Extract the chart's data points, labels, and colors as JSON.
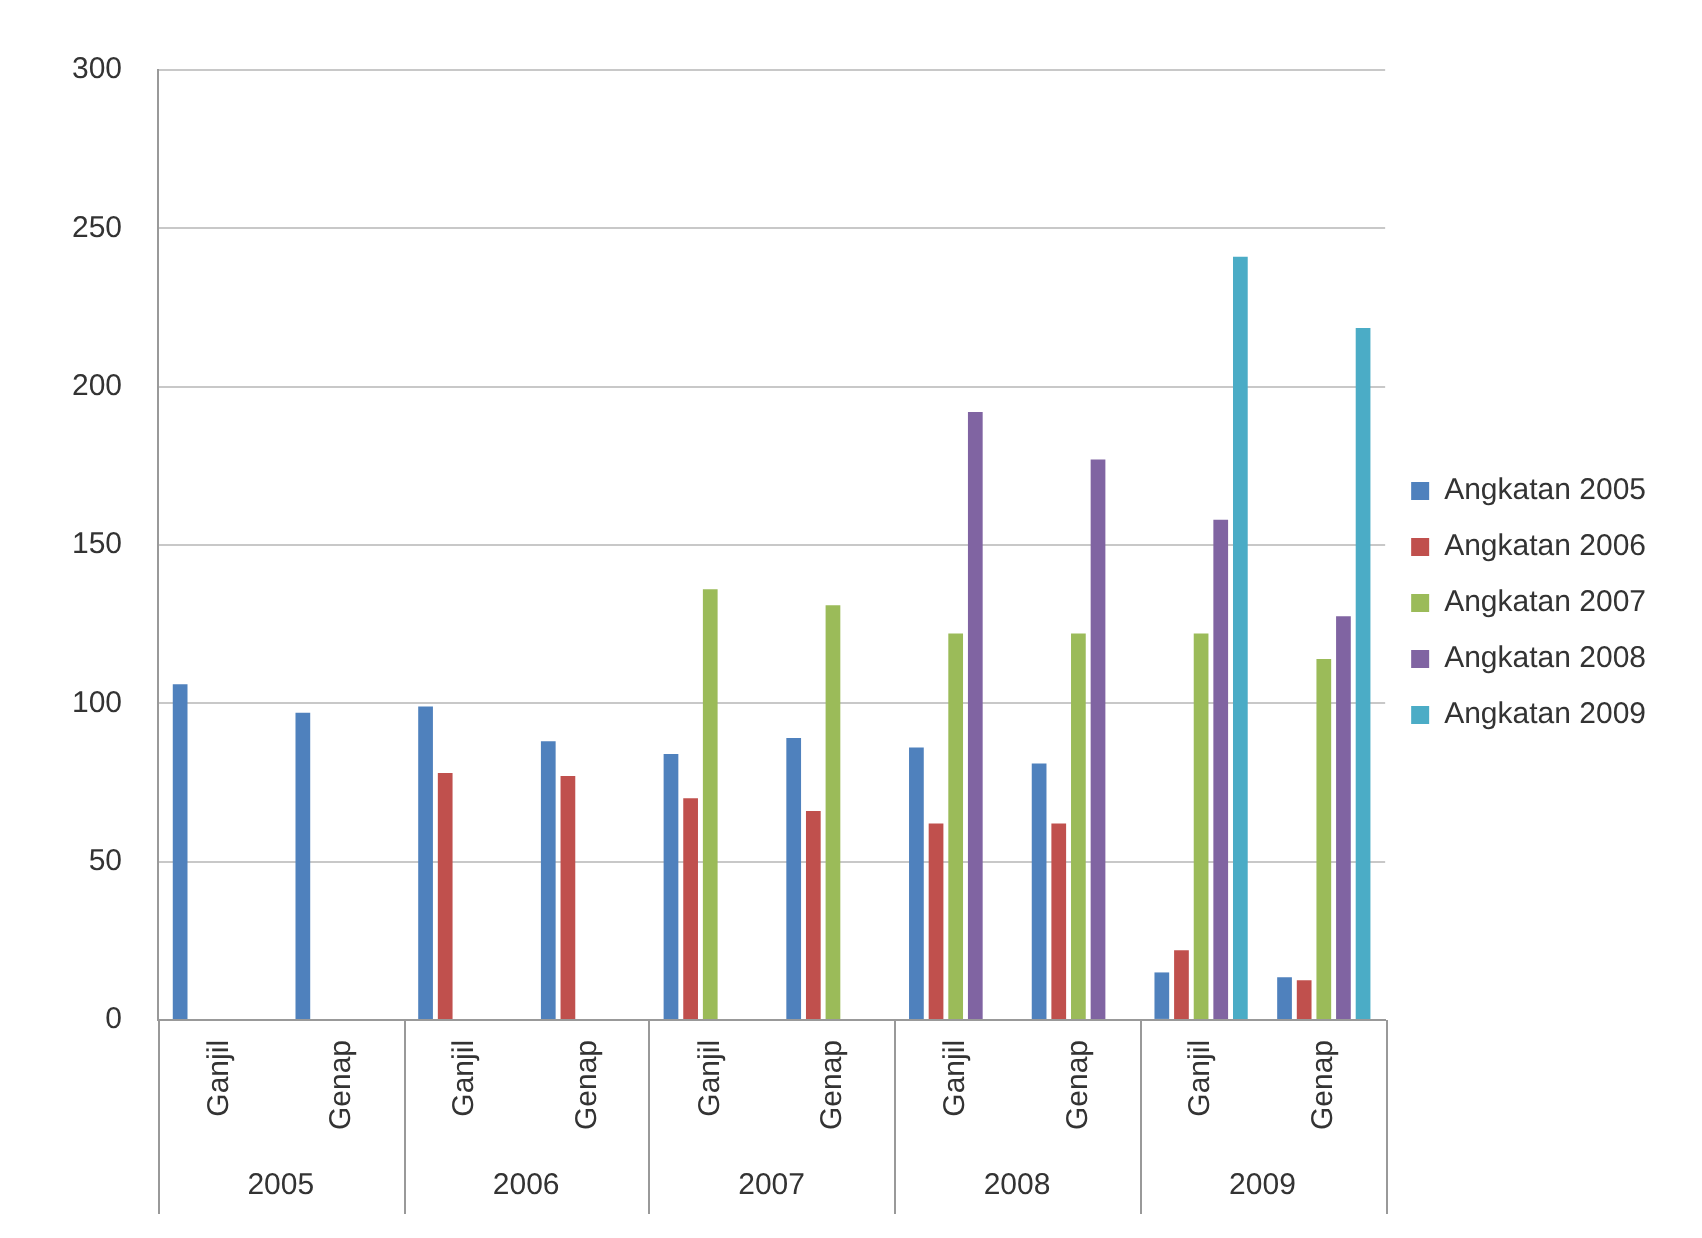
{
  "chart_data": {
    "type": "bar",
    "categories": [
      "Ganjil",
      "Genap",
      "Ganjil",
      "Genap",
      "Ganjil",
      "Genap",
      "Ganjil",
      "Genap",
      "Ganjil",
      "Genap"
    ],
    "annotations": [
      "2005",
      "2006",
      "2007",
      "2008",
      "2009"
    ],
    "series": [
      {
        "name": "Angkatan 2005",
        "color": "#4f81bd",
        "values": [
          106,
          97,
          99,
          88,
          84,
          89,
          86,
          81,
          15,
          13.5
        ]
      },
      {
        "name": "Angkatan 2006",
        "color": "#c0504d",
        "values": [
          null,
          null,
          78,
          77,
          70,
          66,
          62,
          62,
          22,
          12.5
        ]
      },
      {
        "name": "Angkatan 2007",
        "color": "#9bbb59",
        "values": [
          null,
          null,
          null,
          null,
          136,
          131,
          122,
          122,
          122,
          114
        ]
      },
      {
        "name": "Angkatan 2008",
        "color": "#8064a2",
        "values": [
          null,
          null,
          null,
          null,
          null,
          null,
          192,
          177,
          158,
          127.5
        ]
      },
      {
        "name": "Angkatan 2009",
        "color": "#4bacc6",
        "values": [
          null,
          null,
          null,
          null,
          null,
          null,
          null,
          null,
          241,
          218.5
        ]
      }
    ],
    "ylim": [
      0,
      300
    ],
    "yticks": [
      0,
      50,
      100,
      150,
      200,
      250,
      300
    ],
    "grid": "y",
    "legend": "right"
  }
}
